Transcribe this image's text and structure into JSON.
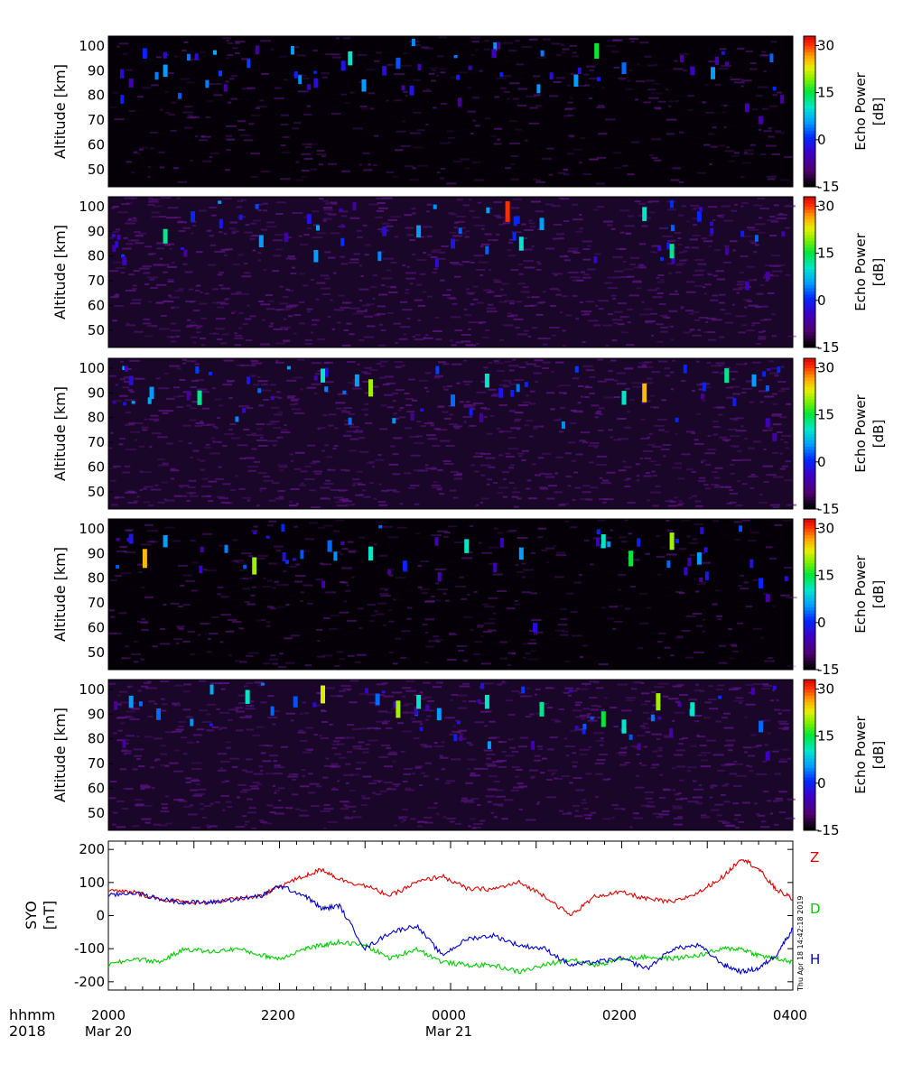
{
  "stamp": "Thu Apr 18 14:42:18 2019",
  "chart_data": [
    {
      "type": "heatmap",
      "panel": 1,
      "ylabel": "Altitude [km]",
      "yticks": [
        50,
        60,
        70,
        80,
        90,
        100
      ],
      "ylim": [
        43,
        104
      ],
      "colorbar": {
        "title": "Echo Power [dB]",
        "ticks": [
          30,
          15,
          0,
          -15
        ],
        "range": [
          -15,
          33
        ]
      },
      "background": "black",
      "events": [
        [
          0.03,
          85,
          -5
        ],
        [
          0.05,
          97,
          0
        ],
        [
          0.08,
          90,
          5
        ],
        [
          0.3,
          85,
          -3
        ],
        [
          0.34,
          92,
          -2
        ],
        [
          0.35,
          95,
          10
        ],
        [
          0.37,
          84,
          5
        ],
        [
          0.4,
          90,
          -3
        ],
        [
          0.42,
          93,
          2
        ],
        [
          0.44,
          82,
          -2
        ],
        [
          0.56,
          97,
          -5
        ],
        [
          0.68,
          86,
          5
        ],
        [
          0.71,
          98,
          15
        ],
        [
          0.75,
          91,
          3
        ],
        [
          0.85,
          90,
          -5
        ],
        [
          0.88,
          89,
          5
        ],
        [
          0.93,
          75,
          -5
        ],
        [
          0.95,
          70,
          -7
        ]
      ]
    },
    {
      "type": "heatmap",
      "panel": 2,
      "ylabel": "Altitude [km]",
      "yticks": [
        50,
        60,
        70,
        80,
        90,
        100
      ],
      "ylim": [
        43,
        104
      ],
      "colorbar": {
        "title": "Echo Power [dB]",
        "ticks": [
          30,
          15,
          0,
          -15
        ],
        "range": [
          -15,
          33
        ]
      },
      "background": "dark purple",
      "events": [
        [
          0.02,
          78,
          -5
        ],
        [
          0.08,
          88,
          12
        ],
        [
          0.12,
          96,
          0
        ],
        [
          0.22,
          86,
          5
        ],
        [
          0.29,
          95,
          -2
        ],
        [
          0.3,
          80,
          5
        ],
        [
          0.4,
          90,
          -3
        ],
        [
          0.45,
          90,
          5
        ],
        [
          0.5,
          85,
          -2
        ],
        [
          0.58,
          98,
          30
        ],
        [
          0.6,
          85,
          10
        ],
        [
          0.63,
          93,
          5
        ],
        [
          0.78,
          97,
          10
        ],
        [
          0.82,
          82,
          12
        ],
        [
          0.86,
          96,
          0
        ],
        [
          0.93,
          68,
          -5
        ],
        [
          0.96,
          72,
          -7
        ]
      ]
    },
    {
      "type": "heatmap",
      "panel": 3,
      "ylabel": "Altitude [km]",
      "yticks": [
        50,
        60,
        70,
        80,
        90,
        100
      ],
      "ylim": [
        43,
        104
      ],
      "colorbar": {
        "title": "Echo Power [dB]",
        "ticks": [
          30,
          15,
          0,
          -15
        ],
        "range": [
          -15,
          33
        ]
      },
      "background": "dark purple",
      "events": [
        [
          0.03,
          95,
          -3
        ],
        [
          0.06,
          90,
          5
        ],
        [
          0.13,
          88,
          12
        ],
        [
          0.31,
          97,
          10
        ],
        [
          0.36,
          95,
          5
        ],
        [
          0.38,
          92,
          20
        ],
        [
          0.5,
          87,
          3
        ],
        [
          0.55,
          95,
          10
        ],
        [
          0.57,
          90,
          -2
        ],
        [
          0.75,
          88,
          10
        ],
        [
          0.78,
          90,
          25
        ],
        [
          0.9,
          97,
          12
        ],
        [
          0.94,
          95,
          5
        ],
        [
          0.96,
          78,
          -5
        ],
        [
          0.97,
          72,
          -7
        ]
      ]
    },
    {
      "type": "heatmap",
      "panel": 4,
      "ylabel": "Altitude [km]",
      "yticks": [
        50,
        60,
        70,
        80,
        90,
        100
      ],
      "ylim": [
        43,
        104
      ],
      "colorbar": {
        "title": "Echo Power [dB]",
        "ticks": [
          30,
          15,
          0,
          -15
        ],
        "range": [
          -15,
          33
        ]
      },
      "background": "black",
      "events": [
        [
          0.03,
          96,
          -2
        ],
        [
          0.05,
          88,
          25
        ],
        [
          0.08,
          95,
          5
        ],
        [
          0.21,
          85,
          20
        ],
        [
          0.32,
          93,
          3
        ],
        [
          0.38,
          90,
          10
        ],
        [
          0.43,
          85,
          0
        ],
        [
          0.52,
          93,
          10
        ],
        [
          0.6,
          90,
          5
        ],
        [
          0.62,
          60,
          -3
        ],
        [
          0.72,
          95,
          10
        ],
        [
          0.76,
          88,
          15
        ],
        [
          0.82,
          95,
          20
        ],
        [
          0.86,
          88,
          5
        ],
        [
          0.95,
          78,
          0
        ],
        [
          0.96,
          72,
          -7
        ]
      ]
    },
    {
      "type": "heatmap",
      "panel": 5,
      "ylabel": "Altitude [km]",
      "yticks": [
        50,
        60,
        70,
        80,
        90,
        100
      ],
      "ylim": [
        43,
        104
      ],
      "colorbar": {
        "title": "Echo Power [dB]",
        "ticks": [
          30,
          15,
          0,
          -15
        ],
        "range": [
          -15,
          33
        ]
      },
      "background": "dark purple",
      "events": [
        [
          0.03,
          95,
          5
        ],
        [
          0.07,
          90,
          3
        ],
        [
          0.2,
          97,
          10
        ],
        [
          0.27,
          95,
          2
        ],
        [
          0.31,
          98,
          22
        ],
        [
          0.39,
          96,
          3
        ],
        [
          0.42,
          92,
          20
        ],
        [
          0.45,
          95,
          10
        ],
        [
          0.48,
          90,
          5
        ],
        [
          0.55,
          95,
          10
        ],
        [
          0.63,
          92,
          12
        ],
        [
          0.72,
          88,
          15
        ],
        [
          0.75,
          85,
          10
        ],
        [
          0.8,
          95,
          20
        ],
        [
          0.85,
          92,
          10
        ],
        [
          0.95,
          85,
          3
        ],
        [
          0.96,
          73,
          -5
        ]
      ]
    },
    {
      "type": "line",
      "panel": 6,
      "ylabel": "SYO [nT]",
      "yticks": [
        200,
        100,
        0,
        -100,
        -200
      ],
      "ylim": [
        -225,
        225
      ],
      "xticks": [
        "2000",
        "2200",
        "0000",
        "0200",
        "0400"
      ],
      "xlim": [
        0,
        8
      ],
      "series": [
        {
          "name": "Z",
          "color": "#dd0000",
          "x": [
            0,
            0.3,
            0.6,
            0.9,
            1.2,
            1.5,
            1.8,
            2.0,
            2.3,
            2.5,
            2.7,
            3.0,
            3.3,
            3.6,
            3.9,
            4.2,
            4.5,
            4.8,
            5.1,
            5.4,
            5.7,
            6.0,
            6.3,
            6.6,
            6.9,
            7.2,
            7.4,
            7.6,
            7.8,
            8.0
          ],
          "values": [
            75,
            70,
            50,
            40,
            40,
            50,
            60,
            90,
            120,
            140,
            110,
            90,
            60,
            100,
            120,
            80,
            80,
            100,
            60,
            0,
            60,
            70,
            50,
            40,
            70,
            120,
            175,
            140,
            80,
            50
          ]
        },
        {
          "name": "D",
          "color": "#00cc00",
          "x": [
            0,
            0.3,
            0.6,
            0.9,
            1.2,
            1.5,
            1.8,
            2.0,
            2.3,
            2.5,
            2.7,
            3.0,
            3.3,
            3.6,
            3.9,
            4.2,
            4.5,
            4.8,
            5.1,
            5.4,
            5.7,
            6.0,
            6.3,
            6.6,
            6.9,
            7.2,
            7.4,
            7.6,
            7.8,
            8.0
          ],
          "values": [
            -150,
            -130,
            -140,
            -100,
            -110,
            -100,
            -120,
            -130,
            -100,
            -90,
            -80,
            -90,
            -130,
            -100,
            -140,
            -150,
            -150,
            -170,
            -150,
            -130,
            -150,
            -130,
            -125,
            -130,
            -120,
            -100,
            -100,
            -120,
            -130,
            -140
          ]
        },
        {
          "name": "H",
          "color": "#0000cc",
          "x": [
            0,
            0.3,
            0.6,
            0.9,
            1.2,
            1.5,
            1.8,
            2.0,
            2.3,
            2.5,
            2.7,
            3.0,
            3.3,
            3.6,
            3.9,
            4.2,
            4.5,
            4.8,
            5.1,
            5.4,
            5.7,
            6.0,
            6.3,
            6.6,
            6.9,
            7.2,
            7.4,
            7.6,
            7.8,
            8.0
          ],
          "values": [
            60,
            70,
            50,
            40,
            40,
            50,
            60,
            90,
            60,
            20,
            30,
            -100,
            -50,
            -30,
            -120,
            -70,
            -60,
            -90,
            -100,
            -150,
            -140,
            -130,
            -160,
            -100,
            -90,
            -150,
            -170,
            -160,
            -120,
            -40
          ]
        }
      ]
    }
  ],
  "labels": {
    "ylabel_alt": "Altitude [km]",
    "cb_title_1": "Echo Power",
    "cb_title_2": "[dB]",
    "syo_1": "SYO",
    "syo_2": "[nT]",
    "hhmm": "hhmm",
    "year": "2018",
    "date1": "Mar 20",
    "date2": "Mar 21",
    "xt": [
      "2000",
      "2200",
      "0000",
      "0200",
      "0400"
    ]
  }
}
